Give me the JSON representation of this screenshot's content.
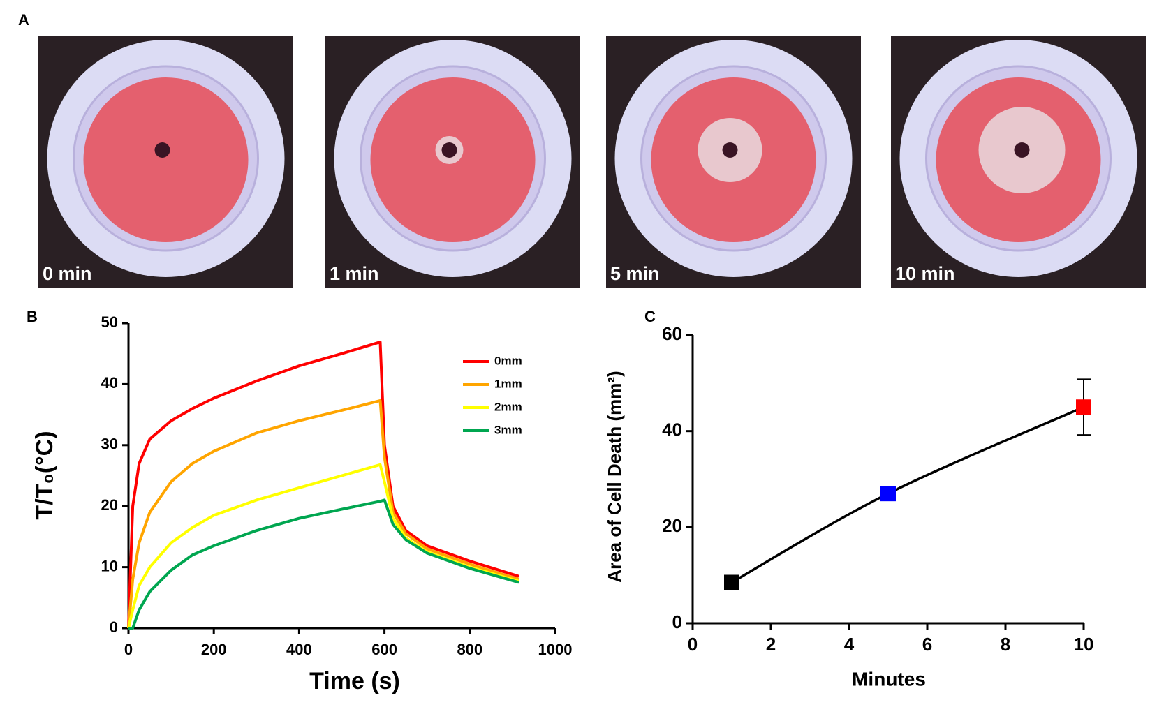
{
  "panel_a": {
    "label": "A",
    "photos": [
      {
        "label": "0 min"
      },
      {
        "label": "1 min"
      },
      {
        "label": "5 min"
      },
      {
        "label": "10 min"
      }
    ]
  },
  "chart_data": [
    {
      "type": "line",
      "panel_label": "B",
      "xlabel": "Time (s)",
      "ylabel": "T/T₀(°C)",
      "x": [
        0,
        10,
        25,
        50,
        100,
        150,
        200,
        300,
        400,
        500,
        590,
        600,
        620,
        650,
        700,
        800,
        915
      ],
      "series": [
        {
          "name": "0mm",
          "color": "#ff0000",
          "values": [
            0,
            20,
            27,
            31,
            34,
            36,
            37.7,
            40.5,
            43,
            45,
            46.9,
            30,
            20,
            16,
            13.5,
            11,
            8.5
          ]
        },
        {
          "name": "1mm",
          "color": "#ffa500",
          "values": [
            0,
            8,
            14,
            19,
            24,
            27,
            29,
            32,
            34,
            35.7,
            37.3,
            28,
            19,
            15.5,
            13,
            10.5,
            8
          ]
        },
        {
          "name": "2mm",
          "color": "#ffff00",
          "values": [
            0,
            3,
            7,
            10,
            14,
            16.5,
            18.5,
            21,
            23,
            25,
            26.8,
            24,
            18,
            14.8,
            12.5,
            10,
            7.7
          ]
        },
        {
          "name": "3mm",
          "color": "#00a650",
          "values": [
            0,
            0,
            3,
            6,
            9.5,
            12,
            13.5,
            16,
            18,
            19.5,
            20.8,
            21,
            17,
            14.5,
            12.3,
            9.8,
            7.5
          ]
        }
      ],
      "xlim": [
        0,
        1000
      ],
      "xticks": [
        0,
        200,
        400,
        600,
        800,
        1000
      ],
      "ylim": [
        0,
        50
      ],
      "yticks": [
        0,
        10,
        20,
        30,
        40,
        50
      ],
      "legend": "upper right"
    },
    {
      "type": "scatter",
      "panel_label": "C",
      "xlabel": "Minutes",
      "ylabel": "Area of Cell Death (mm²)",
      "x": [
        1,
        5,
        10
      ],
      "values": [
        8.5,
        27,
        45
      ],
      "errors": [
        null,
        null,
        5.8
      ],
      "colors": [
        "#000000",
        "#0000ff",
        "#ff0000"
      ],
      "line_color": "#000000",
      "xlim": [
        0,
        10
      ],
      "xticks": [
        0,
        2,
        4,
        6,
        8,
        10
      ],
      "ylim": [
        0,
        60
      ],
      "yticks": [
        0,
        20,
        40,
        60
      ]
    }
  ]
}
